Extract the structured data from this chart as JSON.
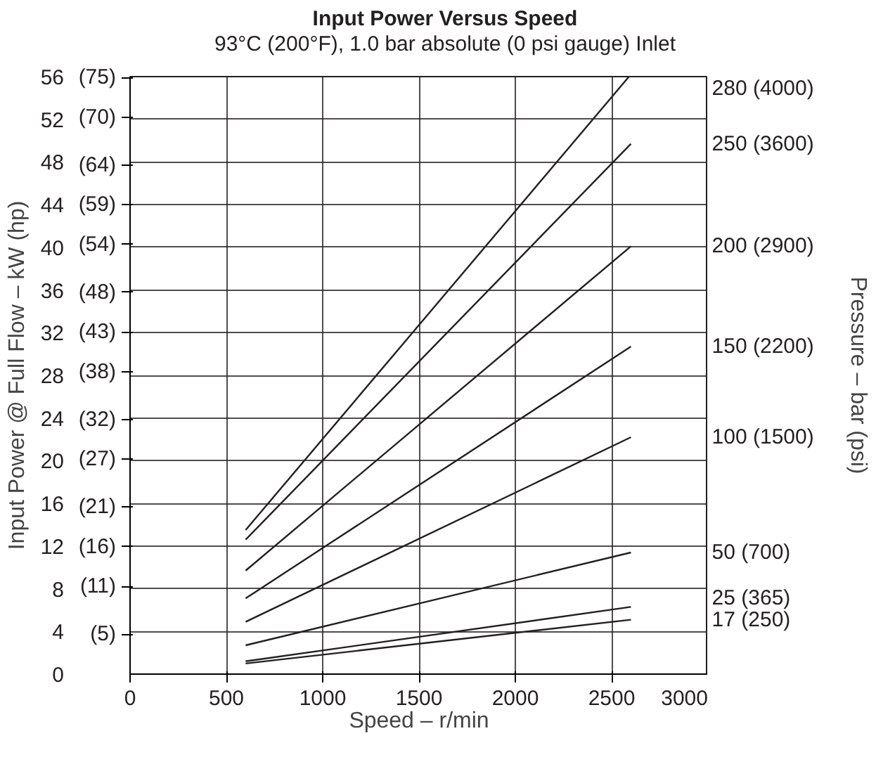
{
  "chart_data": {
    "type": "line",
    "title": "Input Power Versus Speed",
    "subtitle": "93°C (200°F), 1.0 bar absolute (0 psi gauge) Inlet",
    "xlabel": "Speed – r/min",
    "ylabel": "Input Power @ Full Flow – kW (hp)",
    "annotations": [
      "Pressure – bar (psi)"
    ],
    "xlim": [
      0,
      3000
    ],
    "xticks": [
      0,
      500,
      1000,
      1500,
      2000,
      2500,
      3000
    ],
    "ylim": [
      0,
      56
    ],
    "yticks": [
      0,
      4,
      8,
      12,
      16,
      20,
      24,
      28,
      32,
      36,
      40,
      44,
      48,
      52,
      56
    ],
    "y3lim": [
      0,
      75.1
    ],
    "y3ticks": [
      {
        "value": 5,
        "label": "(5)"
      },
      {
        "value": 11,
        "label": "(11)"
      },
      {
        "value": 16,
        "label": "(16)"
      },
      {
        "value": 21,
        "label": "(21)"
      },
      {
        "value": 27,
        "label": "(27)"
      },
      {
        "value": 32,
        "label": "(32)"
      },
      {
        "value": 38,
        "label": "(38)"
      },
      {
        "value": 43,
        "label": "(43)"
      },
      {
        "value": 48,
        "label": "(48)"
      },
      {
        "value": 54,
        "label": "(54)"
      },
      {
        "value": 59,
        "label": "(59)"
      },
      {
        "value": 64,
        "label": "(64)"
      },
      {
        "value": 70,
        "label": "(70)"
      },
      {
        "value": 75,
        "label": "(75)"
      }
    ],
    "grid": true,
    "marker": "none",
    "line_style": "solid",
    "series": [
      {
        "name": "280 (4000)",
        "color": "#231f20",
        "x": [
          600,
          2590
        ],
        "values": [
          13.5,
          56
        ]
      },
      {
        "name": "250 (3600)",
        "color": "#231f20",
        "x": [
          600,
          2600
        ],
        "values": [
          12.6,
          49.7
        ]
      },
      {
        "name": "200 (2900)",
        "color": "#231f20",
        "x": [
          600,
          2600
        ],
        "values": [
          9.7,
          40.1
        ]
      },
      {
        "name": "150 (2200)",
        "color": "#231f20",
        "x": [
          600,
          2600
        ],
        "values": [
          7.1,
          30.7
        ]
      },
      {
        "name": "100 (1500)",
        "color": "#231f20",
        "x": [
          600,
          2600
        ],
        "values": [
          4.9,
          22.2
        ]
      },
      {
        "name": "50 (700)",
        "color": "#231f20",
        "x": [
          600,
          2600
        ],
        "values": [
          2.7,
          11.4
        ]
      },
      {
        "name": "25 (365)",
        "color": "#231f20",
        "x": [
          600,
          2600
        ],
        "values": [
          1.2,
          6.3
        ]
      },
      {
        "name": "17 (250)",
        "color": "#231f20",
        "x": [
          600,
          2600
        ],
        "values": [
          1.0,
          5.1
        ]
      }
    ]
  }
}
